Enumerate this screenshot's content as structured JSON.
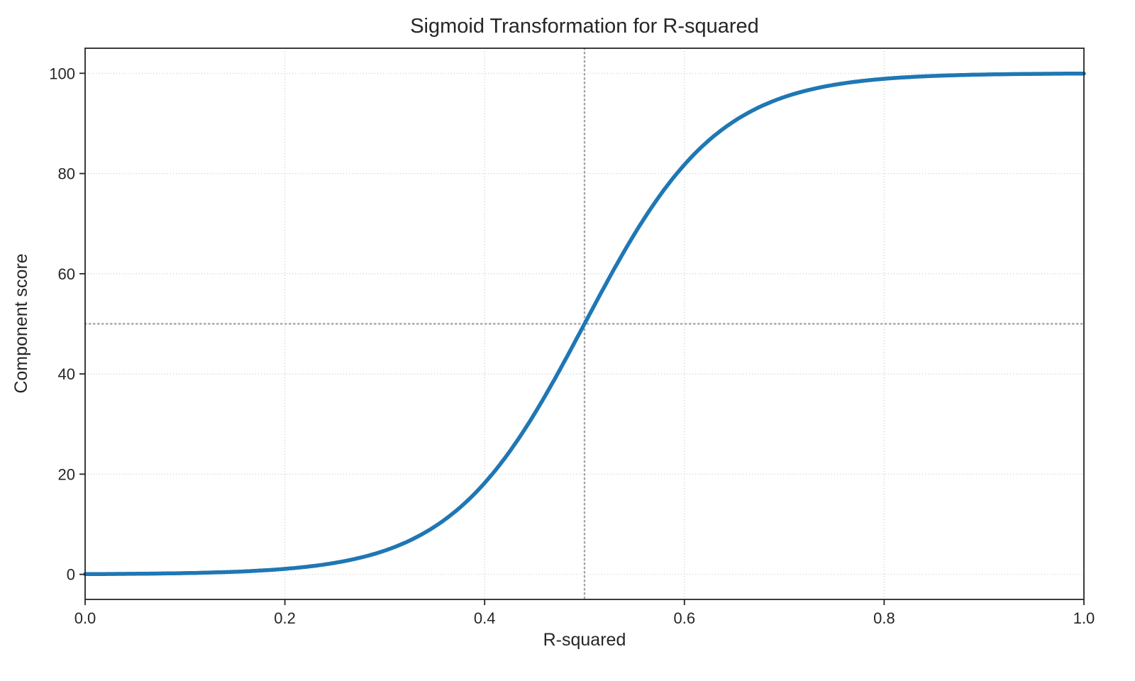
{
  "chart_data": {
    "type": "line",
    "title": "Sigmoid Transformation for R-squared",
    "xlabel": "R-squared",
    "ylabel": "Component score",
    "xlim": [
      0.0,
      1.0
    ],
    "ylim": [
      -5,
      105
    ],
    "xticks": {
      "values": [
        0.0,
        0.2,
        0.4,
        0.6,
        0.8,
        1.0
      ],
      "labels": [
        "0.0",
        "0.2",
        "0.4",
        "0.6",
        "0.8",
        "1.0"
      ]
    },
    "yticks": {
      "values": [
        0,
        20,
        40,
        60,
        80,
        100
      ],
      "labels": [
        "0",
        "20",
        "40",
        "60",
        "80",
        "100"
      ]
    },
    "grid": "dotted",
    "legend": "none",
    "series": [
      {
        "name": "sigmoid",
        "color": "#1f77b4",
        "function": {
          "type": "logistic",
          "amplitude": 100,
          "center": 0.5,
          "steepness": 15
        },
        "x": [
          0.0,
          0.05,
          0.1,
          0.15,
          0.2,
          0.25,
          0.3,
          0.35,
          0.4,
          0.45,
          0.5,
          0.55,
          0.6,
          0.65,
          0.7,
          0.75,
          0.8,
          0.85,
          0.9,
          0.95,
          1.0
        ],
        "y": [
          0.06,
          0.12,
          0.25,
          0.52,
          1.1,
          2.3,
          4.74,
          9.53,
          18.24,
          32.08,
          50.0,
          67.92,
          81.76,
          90.47,
          95.26,
          97.7,
          98.9,
          99.48,
          99.75,
          99.88,
          99.94
        ]
      }
    ],
    "reference_lines": [
      {
        "axis": "x",
        "value": 0.5,
        "style": "dotted",
        "color": "#a6a6a6"
      },
      {
        "axis": "y",
        "value": 50,
        "style": "dotted",
        "color": "#a6a6a6"
      }
    ]
  }
}
